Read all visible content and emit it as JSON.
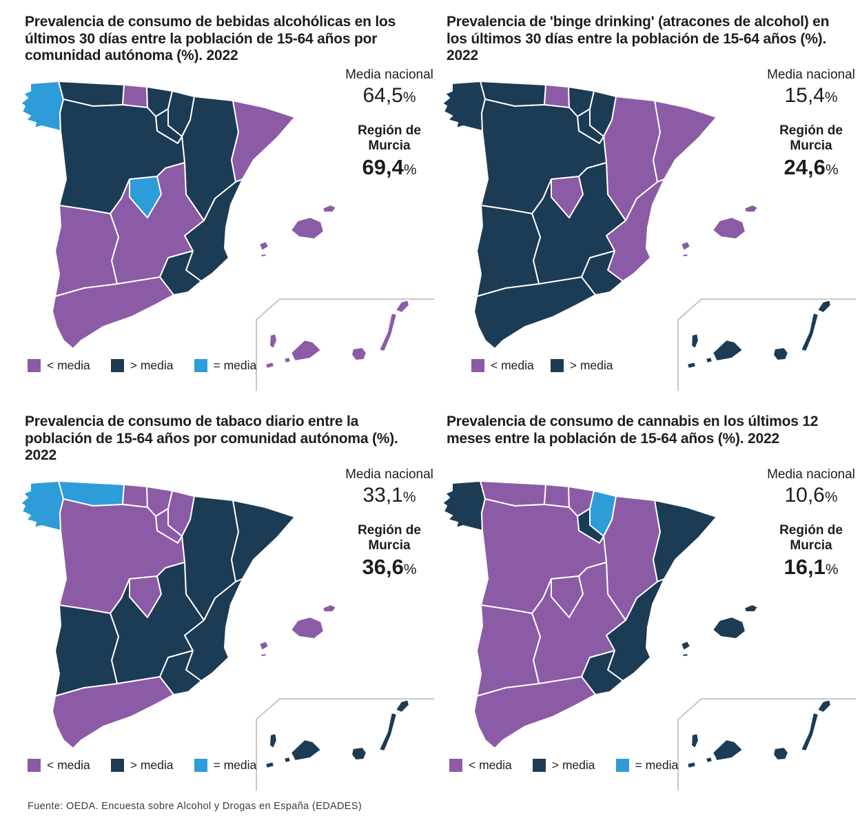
{
  "page": {
    "source_note": "Fuente: OEDA. Encuesta sobre Alcohol y Drogas en España (EDADES)"
  },
  "color_scale": {
    "below": "#8c5ba5",
    "above": "#1c3b54",
    "equal": "#2d9cd9"
  },
  "map_style": {
    "region_border_color": "#ffffff",
    "inset_border_color": "#c6c6c6"
  },
  "chart_data": [
    {
      "type": "heatmap",
      "subtype": "choropleth_map_spain_autonomous_communities",
      "title": "Prevalencia de consumo de bebidas alcohólicas en los últimos 30 días entre la población de 15-64 años por comunidad autónoma (%). 2022",
      "national_mean_label": "Media nacional",
      "national_mean_value": "64,5",
      "region_label": "Región de Murcia",
      "region_value": "69,4",
      "percent_sign": "%",
      "legend": [
        {
          "key": "below",
          "label": "< media"
        },
        {
          "key": "above",
          "label": "> media"
        },
        {
          "key": "equal",
          "label": "= media"
        }
      ],
      "regions": {
        "galicia": "equal",
        "asturias": "above",
        "cantabria": "below",
        "pais_vasco": "above",
        "navarra": "above",
        "la_rioja": "above",
        "aragon": "above",
        "cataluna": "below",
        "castilla_y_leon": "above",
        "madrid": "equal",
        "castilla_la_mancha": "below",
        "comunidad_valenciana": "above",
        "murcia": "above",
        "extremadura": "below",
        "andalucia": "below",
        "baleares": "below",
        "canarias": "below"
      }
    },
    {
      "type": "heatmap",
      "subtype": "choropleth_map_spain_autonomous_communities",
      "title": "Prevalencia de 'binge drinking' (atracones de alcohol) en los últimos 30 días entre la población de 15-64 años (%). 2022",
      "national_mean_label": "Media nacional",
      "national_mean_value": "15,4",
      "region_label": "Región de Murcia",
      "region_value": "24,6",
      "percent_sign": "%",
      "legend": [
        {
          "key": "below",
          "label": "< media"
        },
        {
          "key": "above",
          "label": "> media"
        }
      ],
      "regions": {
        "galicia": "above",
        "asturias": "above",
        "cantabria": "below",
        "pais_vasco": "above",
        "navarra": "above",
        "la_rioja": "above",
        "aragon": "below",
        "cataluna": "below",
        "castilla_y_leon": "above",
        "madrid": "below",
        "castilla_la_mancha": "above",
        "comunidad_valenciana": "below",
        "murcia": "above",
        "extremadura": "above",
        "andalucia": "above",
        "baleares": "below",
        "canarias": "above"
      }
    },
    {
      "type": "heatmap",
      "subtype": "choropleth_map_spain_autonomous_communities",
      "title": "Prevalencia de consumo de tabaco diario entre la población de 15-64 años por comunidad autónoma (%). 2022",
      "national_mean_label": "Media nacional",
      "national_mean_value": "33,1",
      "region_label": "Región de Murcia",
      "region_value": "36,6",
      "percent_sign": "%",
      "legend": [
        {
          "key": "below",
          "label": "< media"
        },
        {
          "key": "above",
          "label": "> media"
        },
        {
          "key": "equal",
          "label": "= media"
        }
      ],
      "regions": {
        "galicia": "equal",
        "asturias": "equal",
        "cantabria": "below",
        "pais_vasco": "below",
        "navarra": "below",
        "la_rioja": "below",
        "aragon": "above",
        "cataluna": "above",
        "castilla_y_leon": "below",
        "madrid": "below",
        "castilla_la_mancha": "above",
        "comunidad_valenciana": "above",
        "murcia": "above",
        "extremadura": "above",
        "andalucia": "below",
        "baleares": "below",
        "canarias": "above"
      }
    },
    {
      "type": "heatmap",
      "subtype": "choropleth_map_spain_autonomous_communities",
      "title": "Prevalencia de consumo de cannabis en los últimos 12 meses entre la población de 15-64 años (%). 2022",
      "national_mean_label": "Media nacional",
      "national_mean_value": "10,6",
      "region_label": "Región de Murcia",
      "region_value": "16,1",
      "percent_sign": "%",
      "legend": [
        {
          "key": "below",
          "label": "< media"
        },
        {
          "key": "above",
          "label": "> media"
        },
        {
          "key": "equal",
          "label": "= media"
        }
      ],
      "regions": {
        "galicia": "above",
        "asturias": "below",
        "cantabria": "below",
        "pais_vasco": "below",
        "navarra": "equal",
        "la_rioja": "above",
        "aragon": "below",
        "cataluna": "above",
        "castilla_y_leon": "below",
        "madrid": "below",
        "castilla_la_mancha": "below",
        "comunidad_valenciana": "above",
        "murcia": "above",
        "extremadura": "below",
        "andalucia": "below",
        "baleares": "above",
        "canarias": "above"
      }
    }
  ]
}
